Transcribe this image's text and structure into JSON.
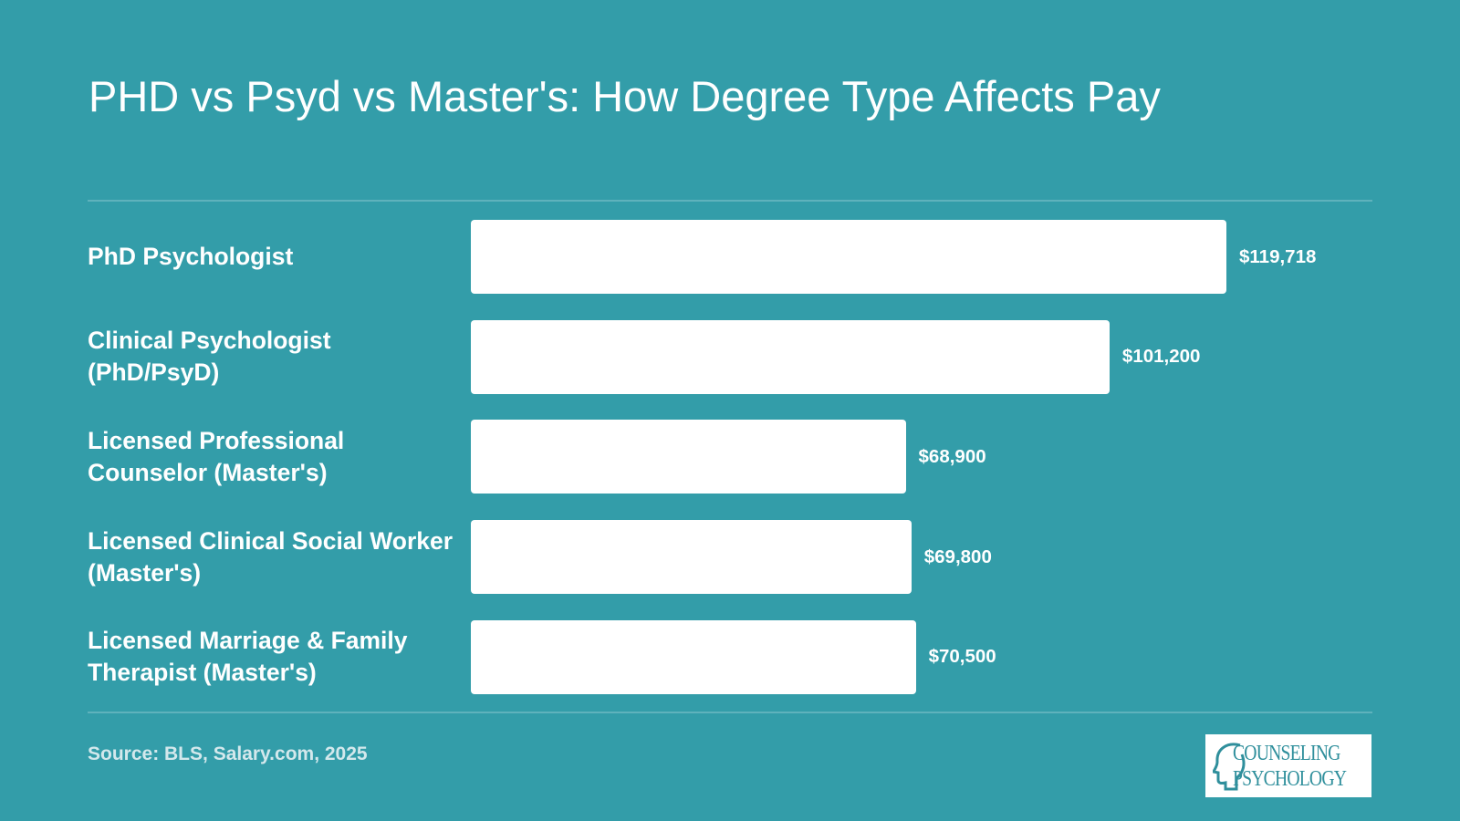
{
  "chart_data": {
    "type": "bar",
    "orientation": "horizontal",
    "title": "PHD vs Psyd vs Master's: How Degree Type Affects Pay",
    "categories": [
      "PhD Psychologist",
      "Clinical Psychologist (PhD/PsyD)",
      "Licensed Professional Counselor (Master's)",
      "Licensed Clinical Social Worker (Master's)",
      "Licensed Marriage & Family Therapist (Master's)"
    ],
    "values": [
      119718,
      101200,
      68900,
      69800,
      70500
    ],
    "value_labels": [
      "$119,718",
      "$101,200",
      "$68,900",
      "$69,800",
      "$70,500"
    ],
    "color": "#ffffff",
    "source": "Source: BLS, Salary.com, 2025"
  },
  "logo": {
    "line1": "COUNSELING",
    "line2": "PSYCHOLOGY"
  }
}
